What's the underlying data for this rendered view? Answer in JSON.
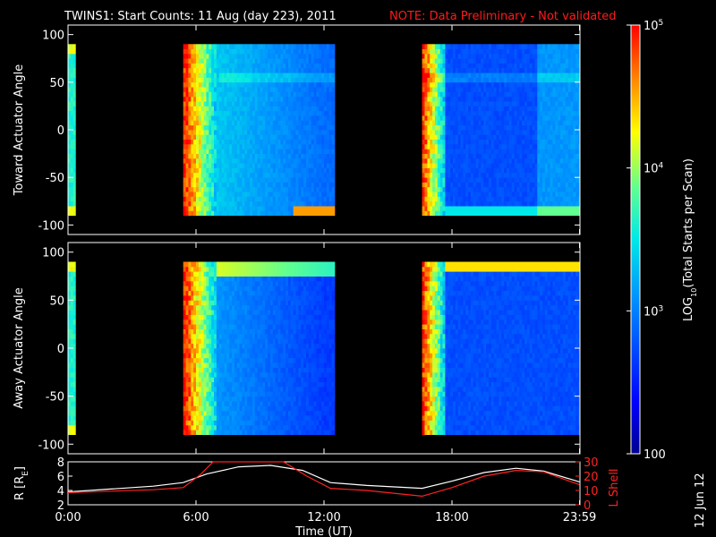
{
  "title": "TWINS1: Start Counts: 11 Aug (day 223), 2011",
  "note": "NOTE: Data Preliminary - Not validated",
  "stamp": "12 Jun 12",
  "colors": {
    "background": "#000000",
    "axes": "#ffffff",
    "note": "#ff1a1a",
    "lshell": "#ff2222"
  },
  "chart_data": [
    {
      "type": "heatmap",
      "panel": "toward",
      "ylabel": "Toward Actuator Angle",
      "ylim": [
        -110,
        110
      ],
      "yticks": [
        "100",
        "50",
        "0",
        "-50",
        "-100"
      ],
      "ytick_values": [
        100,
        50,
        0,
        -50,
        -100
      ],
      "xlim": [
        0,
        24
      ],
      "angle_range": [
        -90,
        90
      ],
      "data_intervals_hours": [
        [
          0,
          0.35
        ],
        [
          5.4,
          12.5
        ],
        [
          16.6,
          23.98
        ]
      ]
    },
    {
      "type": "heatmap",
      "panel": "away",
      "ylabel": "Away Actuator Angle",
      "ylim": [
        -110,
        110
      ],
      "yticks": [
        "100",
        "50",
        "0",
        "-50",
        "-100"
      ],
      "ytick_values": [
        100,
        50,
        0,
        -50,
        -100
      ],
      "xlim": [
        0,
        24
      ],
      "angle_range": [
        -90,
        90
      ],
      "data_intervals_hours": [
        [
          0,
          0.35
        ],
        [
          5.4,
          12.5
        ],
        [
          16.6,
          23.98
        ]
      ]
    },
    {
      "type": "line",
      "panel": "orbit",
      "xlabel": "Time (UT)",
      "xticks": [
        "0:00",
        "6:00",
        "12:00",
        "18:00",
        "23:59"
      ],
      "xtick_values": [
        0,
        6,
        12,
        18,
        23.98
      ],
      "ylabel": "R [R",
      "ylabel_sub": "E",
      "ylabel_end": "]",
      "ylim": [
        2,
        8
      ],
      "yticks": [
        "8",
        "6",
        "4",
        "2"
      ],
      "ytick_values": [
        8,
        6,
        4,
        2
      ],
      "y2label": "L Shell",
      "y2lim": [
        0,
        30
      ],
      "y2ticks": [
        "30",
        "20",
        "10",
        "0"
      ],
      "y2tick_values": [
        30,
        20,
        10,
        0
      ],
      "series": [
        {
          "name": "R",
          "axis": "left",
          "color": "#ffffff",
          "x": [
            0,
            2,
            4,
            5.4,
            6.5,
            8,
            9.5,
            11,
            12.3,
            14,
            16.6,
            18,
            19.5,
            21,
            22.3,
            23.98
          ],
          "y": [
            3.8,
            4.2,
            4.6,
            5.1,
            6.3,
            7.3,
            7.5,
            6.8,
            5.1,
            4.7,
            4.3,
            5.3,
            6.5,
            7.1,
            6.7,
            5.2
          ]
        },
        {
          "name": "L Shell",
          "axis": "right",
          "color": "#ff2222",
          "x": [
            0,
            2,
            4,
            5.4,
            6.2,
            6.8,
            10.1,
            11.2,
            12.3,
            14,
            16.6,
            18,
            19.5,
            21,
            22.3,
            23.98
          ],
          "y": [
            8.5,
            9.5,
            10.5,
            12,
            21,
            30,
            30,
            20,
            11.5,
            10,
            6,
            12,
            20,
            24,
            23,
            14
          ]
        }
      ]
    },
    {
      "type": "heatmap",
      "panel": "colorbar",
      "label_pre": "LOG",
      "label_sub": "10",
      "label_post": "(Total Starts per Scan)",
      "scale": "log",
      "range": [
        100,
        100000
      ],
      "ticks": [
        {
          "value": 100000,
          "base": "10",
          "exp": "5"
        },
        {
          "value": 10000,
          "base": "10",
          "exp": "4"
        },
        {
          "value": 1000,
          "base": "10",
          "exp": "3"
        },
        {
          "value": 100,
          "base": "100",
          "exp": ""
        }
      ]
    }
  ]
}
